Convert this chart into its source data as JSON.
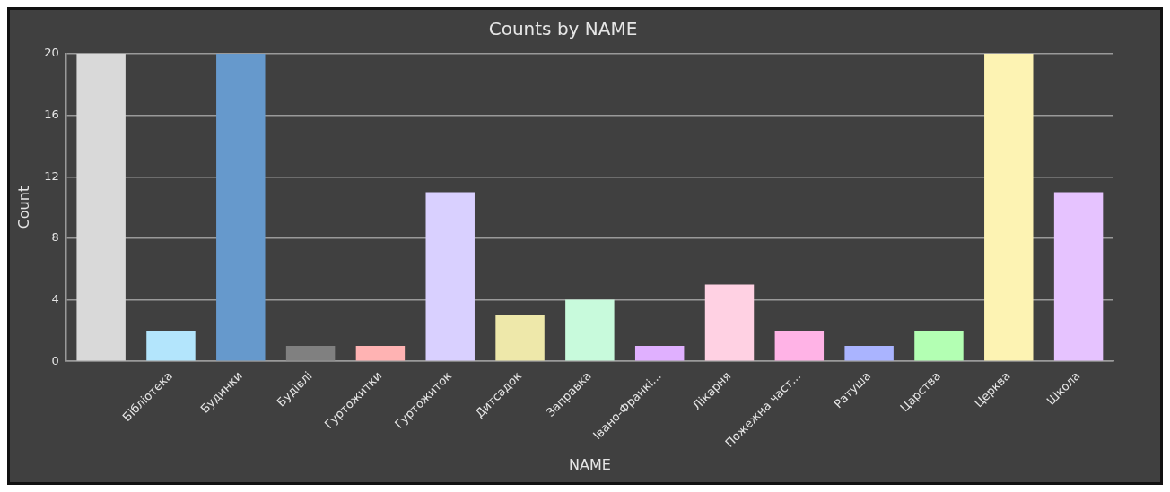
{
  "chart_data": {
    "type": "bar",
    "title": "Counts by NAME",
    "xlabel": "NAME",
    "ylabel": "Count",
    "categories": [
      null,
      "Бібліотека",
      "Будинки",
      "Будівлі",
      "Гуртожитки",
      "Гуртожиток",
      "Дитсадок",
      "Заправка",
      "Івано-Франкі...",
      "Лікарня",
      "Пожежна част...",
      "Ратуша",
      "Царства",
      "Церква",
      "Школа"
    ],
    "values": [
      20,
      2,
      20,
      1,
      1,
      11,
      3,
      4,
      1,
      5,
      2,
      1,
      2,
      20,
      11
    ],
    "colors": [
      "#d9d9d9",
      "#b3e5fc",
      "#6699cc",
      "#808080",
      "#ffb3b3",
      "#d9d0ff",
      "#eee8aa",
      "#c8fadc",
      "#e0b0ff",
      "#ffd1e3",
      "#ffb3e6",
      "#aab4ff",
      "#b3ffb3",
      "#fdf3b3",
      "#e6c3ff"
    ],
    "ylim": [
      0,
      20
    ],
    "yticks": [
      0,
      4,
      8,
      12,
      16,
      20
    ],
    "grid": "y"
  }
}
